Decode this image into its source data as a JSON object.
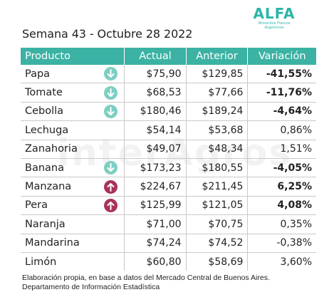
{
  "header": {
    "title": "Semana 43 - Octubre 28 2022"
  },
  "logo": {
    "word": "ALFA",
    "subtitle_line1": "Alimentos Frescos",
    "subtitle_line2": "Argentinos"
  },
  "watermark": "interAgros",
  "table": {
    "columns": [
      "Producto",
      "Actual",
      "Anterior",
      "Variación"
    ],
    "rows": [
      {
        "producto": "Papa",
        "arrow": "down",
        "actual": "$75,90",
        "anterior": "$129,85",
        "variacion": "-41,55%",
        "bold": true
      },
      {
        "producto": "Tomate",
        "arrow": "down",
        "actual": "$68,53",
        "anterior": "$77,66",
        "variacion": "-11,76%",
        "bold": true
      },
      {
        "producto": "Cebolla",
        "arrow": "down",
        "actual": "$180,46",
        "anterior": "$189,24",
        "variacion": "-4,64%",
        "bold": true
      },
      {
        "producto": "Lechuga",
        "arrow": "",
        "actual": "$54,14",
        "anterior": "$53,68",
        "variacion": "0,86%",
        "bold": false
      },
      {
        "producto": "Zanahoria",
        "arrow": "",
        "actual": "$49,07",
        "anterior": "$48,34",
        "variacion": "1,51%",
        "bold": false
      },
      {
        "producto": "Banana",
        "arrow": "down",
        "actual": "$173,23",
        "anterior": "$180,55",
        "variacion": "-4,05%",
        "bold": true
      },
      {
        "producto": "Manzana",
        "arrow": "up",
        "actual": "$224,67",
        "anterior": "$211,45",
        "variacion": "6,25%",
        "bold": true
      },
      {
        "producto": "Pera",
        "arrow": "up",
        "actual": "$125,99",
        "anterior": "$121,05",
        "variacion": "4,08%",
        "bold": true
      },
      {
        "producto": "Naranja",
        "arrow": "",
        "actual": "$71,00",
        "anterior": "$70,75",
        "variacion": "0,35%",
        "bold": false
      },
      {
        "producto": "Mandarina",
        "arrow": "",
        "actual": "$74,24",
        "anterior": "$74,52",
        "variacion": "-0,38%",
        "bold": false
      },
      {
        "producto": "Limón",
        "arrow": "",
        "actual": "$60,80",
        "anterior": "$58,69",
        "variacion": "3,60%",
        "bold": false
      }
    ]
  },
  "footnote": {
    "line1": "Elaboración propia, en base a datos del Mercado Central de Buenos Aires.",
    "line2": "Departamento de Información Estadística"
  },
  "colors": {
    "header_bg": "#3bb2a4",
    "arrow_down": "#7dcfc2",
    "arrow_up": "#a8325c",
    "logo": "#2bb5a8"
  }
}
